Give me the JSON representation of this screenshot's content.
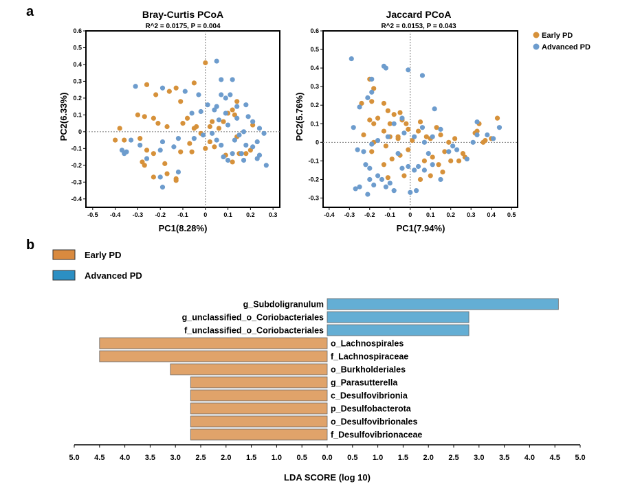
{
  "panels": {
    "a": "a",
    "b": "b"
  },
  "colors": {
    "early_point": "#d6913a",
    "advanced_point": "#6d9ccd",
    "early_bar": "#e0a36a",
    "advanced_bar": "#64aed4",
    "early_legend_swatch": "#d98a3f",
    "advanced_legend_swatch": "#2c8fc3"
  },
  "chart_data": [
    {
      "type": "scatter",
      "title": "Bray-Curtis PCoA",
      "subtitle": "R^2 = 0.0175, P = 0.004",
      "xlabel": "PC1(8.28%)",
      "ylabel": "PC2(6.33%)",
      "xlim": [
        -0.53,
        0.33
      ],
      "ylim": [
        -0.45,
        0.6
      ],
      "xticks": [
        "-0.5",
        "-0.4",
        "-0.3",
        "-0.2",
        "-0.1",
        "0",
        "0.1",
        "0.2",
        "0.3"
      ],
      "yticks": [
        "-0.4",
        "-0.3",
        "-0.2",
        "-0.1",
        "0",
        "0.1",
        "0.2",
        "0.3",
        "0.4",
        "0.5",
        "0.6"
      ],
      "series": [
        {
          "name": "Early PD",
          "points": [
            [
              0.0,
              0.41
            ],
            [
              -0.05,
              0.29
            ],
            [
              -0.13,
              0.26
            ],
            [
              -0.16,
              0.24
            ],
            [
              -0.22,
              0.22
            ],
            [
              -0.26,
              0.28
            ],
            [
              -0.11,
              0.18
            ],
            [
              -0.27,
              0.09
            ],
            [
              -0.23,
              0.08
            ],
            [
              -0.21,
              0.05
            ],
            [
              -0.3,
              0.1
            ],
            [
              -0.1,
              0.05
            ],
            [
              -0.08,
              0.08
            ],
            [
              -0.17,
              0.03
            ],
            [
              -0.38,
              0.02
            ],
            [
              -0.36,
              -0.05
            ],
            [
              -0.29,
              -0.04
            ],
            [
              -0.4,
              -0.05
            ],
            [
              -0.26,
              -0.11
            ],
            [
              -0.23,
              -0.13
            ],
            [
              -0.07,
              -0.07
            ],
            [
              -0.11,
              -0.12
            ],
            [
              -0.18,
              -0.19
            ],
            [
              -0.13,
              -0.28
            ],
            [
              -0.27,
              -0.2
            ],
            [
              -0.23,
              -0.27
            ],
            [
              -0.17,
              -0.25
            ],
            [
              -0.13,
              -0.29
            ],
            [
              -0.28,
              -0.18
            ],
            [
              0.02,
              0.03
            ],
            [
              0.04,
              -0.09
            ],
            [
              0.06,
              0.02
            ],
            [
              0.08,
              0.06
            ],
            [
              0.1,
              0.11
            ],
            [
              0.13,
              0.1
            ],
            [
              0.14,
              0.18
            ],
            [
              0.12,
              0.13
            ],
            [
              0.02,
              -0.06
            ],
            [
              -0.02,
              -0.01
            ],
            [
              -0.05,
              0.02
            ],
            [
              0.14,
              -0.03
            ],
            [
              0.15,
              -0.13
            ],
            [
              0.12,
              -0.18
            ],
            [
              0.09,
              -0.14
            ],
            [
              0.18,
              -0.13
            ],
            [
              0.2,
              -0.11
            ],
            [
              0.21,
              0.04
            ],
            [
              0.0,
              -0.1
            ],
            [
              -0.06,
              -0.12
            ],
            [
              0.03,
              0.06
            ],
            [
              -0.04,
              0.03
            ]
          ]
        },
        {
          "name": "Advanced PD",
          "points": [
            [
              0.05,
              0.42
            ],
            [
              -0.31,
              0.27
            ],
            [
              -0.19,
              0.26
            ],
            [
              -0.09,
              0.24
            ],
            [
              -0.03,
              0.22
            ],
            [
              0.01,
              0.16
            ],
            [
              0.04,
              0.13
            ],
            [
              0.07,
              0.22
            ],
            [
              0.07,
              0.31
            ],
            [
              0.09,
              0.2
            ],
            [
              0.11,
              0.22
            ],
            [
              0.14,
              0.15
            ],
            [
              0.12,
              0.31
            ],
            [
              0.18,
              0.16
            ],
            [
              0.14,
              0.08
            ],
            [
              0.19,
              0.09
            ],
            [
              0.21,
              0.06
            ],
            [
              0.24,
              0.02
            ],
            [
              0.26,
              -0.01
            ],
            [
              0.23,
              -0.06
            ],
            [
              0.18,
              -0.08
            ],
            [
              0.21,
              -0.09
            ],
            [
              0.24,
              -0.14
            ],
            [
              0.27,
              -0.2
            ],
            [
              0.23,
              -0.16
            ],
            [
              0.17,
              -0.17
            ],
            [
              0.16,
              -0.13
            ],
            [
              0.12,
              -0.13
            ],
            [
              0.1,
              -0.17
            ],
            [
              0.08,
              -0.15
            ],
            [
              0.07,
              -0.08
            ],
            [
              0.05,
              -0.05
            ],
            [
              0.03,
              -0.01
            ],
            [
              0.06,
              0.07
            ],
            [
              0.05,
              0.15
            ],
            [
              -0.02,
              0.12
            ],
            [
              -0.06,
              0.11
            ],
            [
              -0.05,
              -0.04
            ],
            [
              -0.12,
              -0.04
            ],
            [
              -0.14,
              -0.09
            ],
            [
              -0.19,
              -0.06
            ],
            [
              -0.2,
              -0.11
            ],
            [
              -0.2,
              -0.27
            ],
            [
              -0.26,
              -0.16
            ],
            [
              -0.29,
              -0.08
            ],
            [
              -0.33,
              -0.05
            ],
            [
              -0.35,
              -0.12
            ],
            [
              -0.37,
              -0.11
            ],
            [
              -0.36,
              -0.13
            ],
            [
              -0.19,
              -0.33
            ],
            [
              -0.12,
              -0.24
            ],
            [
              0.15,
              -0.02
            ],
            [
              0.13,
              -0.05
            ],
            [
              -0.01,
              -0.02
            ],
            [
              0.1,
              0.04
            ],
            [
              0.17,
              0.0
            ],
            [
              0.09,
              0.11
            ]
          ]
        }
      ]
    },
    {
      "type": "scatter",
      "title": "Jaccard PCoA",
      "subtitle": "R^2 = 0.0153, P = 0.043",
      "xlabel": "PC1(7.94%)",
      "ylabel": "PC2(5.76%)",
      "xlim": [
        -0.43,
        0.53
      ],
      "ylim": [
        -0.35,
        0.6
      ],
      "xticks": [
        "-0.4",
        "-0.3",
        "-0.2",
        "-0.1",
        "0",
        "0.1",
        "0.2",
        "0.3",
        "0.4",
        "0.5"
      ],
      "yticks": [
        "-0.3",
        "-0.2",
        "-0.1",
        "0",
        "0.1",
        "0.2",
        "0.3",
        "0.4",
        "0.5",
        "0.6"
      ],
      "legend": {
        "position": "top-right",
        "entries": [
          "Early PD",
          "Advanced PD"
        ]
      },
      "series": [
        {
          "name": "Early PD",
          "points": [
            [
              -0.2,
              0.34
            ],
            [
              -0.18,
              0.29
            ],
            [
              -0.24,
              0.21
            ],
            [
              -0.19,
              0.22
            ],
            [
              -0.13,
              0.21
            ],
            [
              -0.11,
              0.17
            ],
            [
              -0.08,
              0.15
            ],
            [
              -0.04,
              0.12
            ],
            [
              -0.1,
              0.1
            ],
            [
              -0.16,
              0.13
            ],
            [
              -0.2,
              0.12
            ],
            [
              -0.18,
              0.1
            ],
            [
              -0.13,
              0.06
            ],
            [
              -0.1,
              0.03
            ],
            [
              -0.06,
              0.02
            ],
            [
              -0.02,
              0.1
            ],
            [
              -0.01,
              0.07
            ],
            [
              -0.05,
              0.16
            ],
            [
              -0.12,
              -0.02
            ],
            [
              -0.18,
              0.0
            ],
            [
              -0.23,
              0.04
            ],
            [
              -0.19,
              -0.05
            ],
            [
              -0.13,
              -0.12
            ],
            [
              -0.09,
              -0.09
            ],
            [
              -0.05,
              -0.07
            ],
            [
              -0.01,
              -0.04
            ],
            [
              0.04,
              0.06
            ],
            [
              0.05,
              0.11
            ],
            [
              0.08,
              0.03
            ],
            [
              0.1,
              0.02
            ],
            [
              0.13,
              0.08
            ],
            [
              0.15,
              0.04
            ],
            [
              0.11,
              -0.08
            ],
            [
              0.14,
              -0.12
            ],
            [
              0.17,
              -0.05
            ],
            [
              0.19,
              0.0
            ],
            [
              0.22,
              0.02
            ],
            [
              0.2,
              -0.1
            ],
            [
              0.16,
              -0.16
            ],
            [
              0.1,
              -0.18
            ],
            [
              0.26,
              -0.06
            ],
            [
              0.32,
              0.05
            ],
            [
              0.34,
              0.1
            ],
            [
              0.37,
              0.01
            ],
            [
              0.4,
              0.02
            ],
            [
              0.43,
              0.13
            ],
            [
              0.36,
              0.0
            ],
            [
              0.33,
              0.06
            ],
            [
              0.05,
              -0.2
            ],
            [
              0.01,
              0.01
            ],
            [
              -0.03,
              -0.18
            ],
            [
              -0.11,
              -0.19
            ],
            [
              -0.06,
              0.03
            ],
            [
              0.07,
              -0.1
            ],
            [
              0.27,
              -0.08
            ],
            [
              0.24,
              -0.1
            ]
          ]
        },
        {
          "name": "Advanced PD",
          "points": [
            [
              -0.29,
              0.45
            ],
            [
              -0.19,
              0.34
            ],
            [
              -0.12,
              0.4
            ],
            [
              -0.13,
              0.41
            ],
            [
              -0.01,
              0.39
            ],
            [
              0.06,
              0.36
            ],
            [
              -0.21,
              0.24
            ],
            [
              -0.25,
              0.19
            ],
            [
              -0.19,
              0.27
            ],
            [
              -0.04,
              0.13
            ],
            [
              -0.08,
              0.1
            ],
            [
              -0.03,
              0.05
            ],
            [
              0.02,
              0.03
            ],
            [
              0.07,
              0.0
            ],
            [
              0.12,
              0.18
            ],
            [
              0.06,
              0.08
            ],
            [
              -0.11,
              0.03
            ],
            [
              -0.16,
              0.01
            ],
            [
              -0.19,
              -0.01
            ],
            [
              -0.23,
              -0.05
            ],
            [
              -0.26,
              -0.04
            ],
            [
              -0.28,
              0.08
            ],
            [
              -0.22,
              -0.12
            ],
            [
              -0.2,
              -0.14
            ],
            [
              -0.2,
              -0.2
            ],
            [
              -0.18,
              -0.23
            ],
            [
              -0.16,
              -0.18
            ],
            [
              -0.14,
              -0.2
            ],
            [
              -0.1,
              -0.22
            ],
            [
              -0.12,
              -0.24
            ],
            [
              -0.08,
              -0.26
            ],
            [
              -0.04,
              -0.14
            ],
            [
              -0.06,
              -0.06
            ],
            [
              -0.01,
              -0.13
            ],
            [
              0.02,
              -0.15
            ],
            [
              0.03,
              -0.26
            ],
            [
              0.07,
              -0.15
            ],
            [
              0.09,
              -0.06
            ],
            [
              0.11,
              -0.12
            ],
            [
              0.15,
              -0.2
            ],
            [
              0.19,
              -0.05
            ],
            [
              0.21,
              -0.02
            ],
            [
              0.23,
              -0.04
            ],
            [
              0.28,
              -0.09
            ],
            [
              0.31,
              0.0
            ],
            [
              0.33,
              0.11
            ],
            [
              0.33,
              0.04
            ],
            [
              0.38,
              0.04
            ],
            [
              0.41,
              0.02
            ],
            [
              0.44,
              0.08
            ],
            [
              0.04,
              -0.13
            ],
            [
              0.11,
              0.03
            ],
            [
              0.15,
              0.07
            ],
            [
              -0.25,
              -0.24
            ],
            [
              -0.21,
              -0.28
            ],
            [
              -0.27,
              -0.25
            ],
            [
              0.0,
              -0.27
            ]
          ]
        }
      ]
    },
    {
      "type": "bar",
      "orientation": "horizontal",
      "legend_entries": [
        "Early PD",
        "Advanced PD"
      ],
      "xlabel": "LDA SCORE (log 10)",
      "xlim": [
        -5.0,
        5.0
      ],
      "xtick_labels": [
        "5.0",
        "4.5",
        "4.0",
        "3.5",
        "3.0",
        "2.5",
        "2.0",
        "1.5",
        "1.0",
        "0.5",
        "0.0",
        "0.5",
        "1.0",
        "1.5",
        "2.0",
        "2.5",
        "3.0",
        "3.5",
        "4.0",
        "4.5",
        "5.0"
      ],
      "bars": [
        {
          "label": "g_Subdoligranulum",
          "group": "Advanced PD",
          "value": 4.57
        },
        {
          "label": "g_unclassified_o_Coriobacteriales",
          "group": "Advanced PD",
          "value": 2.8
        },
        {
          "label": "f_unclassified_o_Coriobacteriales",
          "group": "Advanced PD",
          "value": 2.8
        },
        {
          "label": "o_Lachnospirales",
          "group": "Early PD",
          "value": 4.5
        },
        {
          "label": "f_Lachnospiraceae",
          "group": "Early PD",
          "value": 4.5
        },
        {
          "label": "o_Burkholderiales",
          "group": "Early PD",
          "value": 3.1
        },
        {
          "label": "g_Parasutterella",
          "group": "Early PD",
          "value": 2.7
        },
        {
          "label": "c_Desulfovibrionia",
          "group": "Early PD",
          "value": 2.7
        },
        {
          "label": "p_Desulfobacterota",
          "group": "Early PD",
          "value": 2.7
        },
        {
          "label": "o_Desulfovibrionales",
          "group": "Early PD",
          "value": 2.7
        },
        {
          "label": "f_Desulfovibrionaceae",
          "group": "Early PD",
          "value": 2.7
        }
      ]
    }
  ]
}
